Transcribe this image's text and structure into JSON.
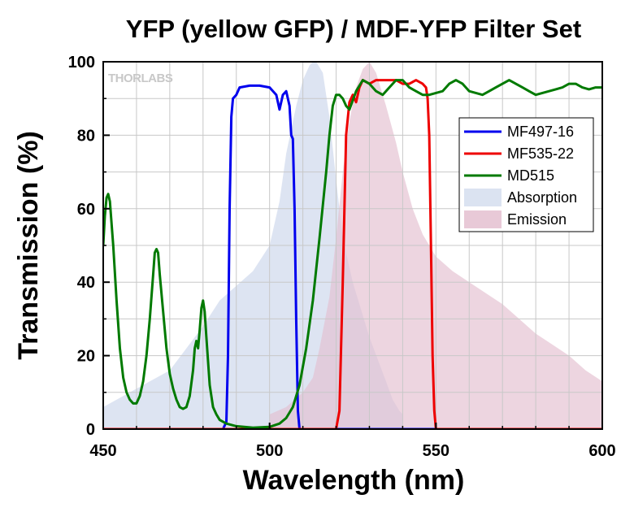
{
  "chart_data": {
    "type": "line",
    "title": "YFP (yellow GFP) / MDF-YFP Filter Set",
    "xlabel": "Wavelength (nm)",
    "ylabel": "Transmission (%)",
    "xlim": [
      450,
      600
    ],
    "ylim": [
      0,
      100
    ],
    "xticks": [
      450,
      500,
      550,
      600
    ],
    "yticks": [
      0,
      20,
      40,
      60,
      80,
      100
    ],
    "grid": true,
    "watermark": "THORLABS",
    "legend_position": "right",
    "series": [
      {
        "name": "MF497-16",
        "style": "line",
        "color": "#0000ee",
        "points": [
          [
            450,
            0
          ],
          [
            486,
            0
          ],
          [
            487,
            2
          ],
          [
            487.5,
            20
          ],
          [
            488,
            60
          ],
          [
            488.5,
            85
          ],
          [
            489,
            90
          ],
          [
            490,
            91
          ],
          [
            491,
            93
          ],
          [
            494,
            93.5
          ],
          [
            497,
            93.5
          ],
          [
            500,
            93
          ],
          [
            502,
            91
          ],
          [
            503,
            87
          ],
          [
            504,
            91
          ],
          [
            505,
            92
          ],
          [
            506,
            88
          ],
          [
            506.5,
            80
          ],
          [
            507,
            79
          ],
          [
            507.5,
            60
          ],
          [
            508,
            30
          ],
          [
            508.5,
            5
          ],
          [
            509,
            0
          ],
          [
            600,
            0
          ]
        ]
      },
      {
        "name": "MF535-22",
        "style": "line",
        "color": "#ee0000",
        "points": [
          [
            450,
            0
          ],
          [
            520,
            0
          ],
          [
            521,
            5
          ],
          [
            522,
            40
          ],
          [
            523,
            80
          ],
          [
            524,
            89
          ],
          [
            525,
            91
          ],
          [
            526,
            89
          ],
          [
            527,
            93
          ],
          [
            528,
            95
          ],
          [
            530,
            94
          ],
          [
            532,
            95
          ],
          [
            535,
            95
          ],
          [
            538,
            95
          ],
          [
            540,
            94
          ],
          [
            542,
            94
          ],
          [
            544,
            95
          ],
          [
            546,
            94
          ],
          [
            547,
            93
          ],
          [
            547.5,
            90
          ],
          [
            548,
            80
          ],
          [
            548.5,
            50
          ],
          [
            549,
            20
          ],
          [
            549.5,
            5
          ],
          [
            550,
            0
          ],
          [
            600,
            0
          ]
        ]
      },
      {
        "name": "MD515",
        "style": "line",
        "color": "#007a00",
        "points": [
          [
            450,
            50
          ],
          [
            450.5,
            58
          ],
          [
            451,
            63
          ],
          [
            451.5,
            64
          ],
          [
            452,
            62
          ],
          [
            453,
            50
          ],
          [
            454,
            35
          ],
          [
            455,
            22
          ],
          [
            456,
            14
          ],
          [
            457,
            10
          ],
          [
            458,
            8
          ],
          [
            459,
            7
          ],
          [
            460,
            7
          ],
          [
            461,
            9
          ],
          [
            462,
            13
          ],
          [
            463,
            20
          ],
          [
            464,
            30
          ],
          [
            465,
            42
          ],
          [
            465.5,
            48
          ],
          [
            466,
            49
          ],
          [
            466.5,
            48
          ],
          [
            467,
            42
          ],
          [
            468,
            32
          ],
          [
            469,
            22
          ],
          [
            470,
            15
          ],
          [
            471,
            11
          ],
          [
            472,
            8
          ],
          [
            473,
            6
          ],
          [
            474,
            5.5
          ],
          [
            475,
            6
          ],
          [
            476,
            9
          ],
          [
            477,
            16
          ],
          [
            477.5,
            22
          ],
          [
            478,
            24
          ],
          [
            478.5,
            22
          ],
          [
            479,
            27
          ],
          [
            479.5,
            33
          ],
          [
            480,
            35
          ],
          [
            480.5,
            32
          ],
          [
            481,
            25
          ],
          [
            482,
            12
          ],
          [
            483,
            6
          ],
          [
            484,
            4
          ],
          [
            485,
            2.5
          ],
          [
            487,
            1.5
          ],
          [
            490,
            0.8
          ],
          [
            495,
            0.4
          ],
          [
            500,
            0.6
          ],
          [
            503,
            1.5
          ],
          [
            505,
            3
          ],
          [
            507,
            6
          ],
          [
            509,
            12
          ],
          [
            511,
            22
          ],
          [
            513,
            35
          ],
          [
            515,
            52
          ],
          [
            517,
            70
          ],
          [
            518,
            80
          ],
          [
            519,
            88
          ],
          [
            520,
            91
          ],
          [
            521,
            91
          ],
          [
            522,
            90
          ],
          [
            523,
            88
          ],
          [
            524,
            87
          ],
          [
            526,
            92
          ],
          [
            528,
            95
          ],
          [
            530,
            94
          ],
          [
            532,
            92
          ],
          [
            534,
            91
          ],
          [
            536,
            93
          ],
          [
            538,
            95
          ],
          [
            540,
            95
          ],
          [
            542,
            93
          ],
          [
            544,
            92
          ],
          [
            546,
            91
          ],
          [
            548,
            91
          ],
          [
            550,
            91.5
          ],
          [
            552,
            92
          ],
          [
            554,
            94
          ],
          [
            556,
            95
          ],
          [
            558,
            94
          ],
          [
            560,
            92
          ],
          [
            562,
            91.5
          ],
          [
            564,
            91
          ],
          [
            566,
            92
          ],
          [
            568,
            93
          ],
          [
            570,
            94
          ],
          [
            572,
            95
          ],
          [
            574,
            94
          ],
          [
            576,
            93
          ],
          [
            578,
            92
          ],
          [
            580,
            91
          ],
          [
            582,
            91.5
          ],
          [
            584,
            92
          ],
          [
            586,
            92.5
          ],
          [
            588,
            93
          ],
          [
            590,
            94
          ],
          [
            592,
            94
          ],
          [
            594,
            93
          ],
          [
            596,
            92.5
          ],
          [
            598,
            93
          ],
          [
            600,
            93
          ]
        ]
      },
      {
        "name": "Absorption",
        "style": "area",
        "color": "#dbe3f1",
        "opacity": 0.95,
        "points": [
          [
            450,
            6
          ],
          [
            460,
            11
          ],
          [
            470,
            16
          ],
          [
            475,
            22
          ],
          [
            480,
            28
          ],
          [
            485,
            35
          ],
          [
            490,
            39
          ],
          [
            495,
            43
          ],
          [
            500,
            50
          ],
          [
            503,
            62
          ],
          [
            505,
            75
          ],
          [
            508,
            88
          ],
          [
            510,
            95
          ],
          [
            512,
            99
          ],
          [
            513,
            100
          ],
          [
            514,
            100
          ],
          [
            516,
            97
          ],
          [
            518,
            85
          ],
          [
            520,
            68
          ],
          [
            522,
            52
          ],
          [
            525,
            40
          ],
          [
            530,
            25
          ],
          [
            535,
            13
          ],
          [
            537,
            8
          ],
          [
            539,
            5
          ],
          [
            540,
            4
          ],
          [
            540,
            0
          ],
          [
            450,
            0
          ]
        ]
      },
      {
        "name": "Emission",
        "style": "area",
        "color": "#e4bfd0",
        "opacity": 0.65,
        "points": [
          [
            500,
            4
          ],
          [
            505,
            6
          ],
          [
            510,
            10
          ],
          [
            513,
            14
          ],
          [
            515,
            22
          ],
          [
            518,
            36
          ],
          [
            520,
            52
          ],
          [
            522,
            70
          ],
          [
            524,
            84
          ],
          [
            526,
            93
          ],
          [
            528,
            98
          ],
          [
            529,
            99
          ],
          [
            530,
            100
          ],
          [
            532,
            97
          ],
          [
            535,
            88
          ],
          [
            538,
            78
          ],
          [
            540,
            70
          ],
          [
            543,
            60
          ],
          [
            546,
            53
          ],
          [
            550,
            47
          ],
          [
            555,
            43
          ],
          [
            560,
            40
          ],
          [
            565,
            37
          ],
          [
            570,
            34
          ],
          [
            575,
            30
          ],
          [
            580,
            26
          ],
          [
            585,
            23
          ],
          [
            590,
            20
          ],
          [
            595,
            16
          ],
          [
            600,
            13
          ],
          [
            600,
            0
          ],
          [
            500,
            0
          ]
        ]
      }
    ]
  }
}
